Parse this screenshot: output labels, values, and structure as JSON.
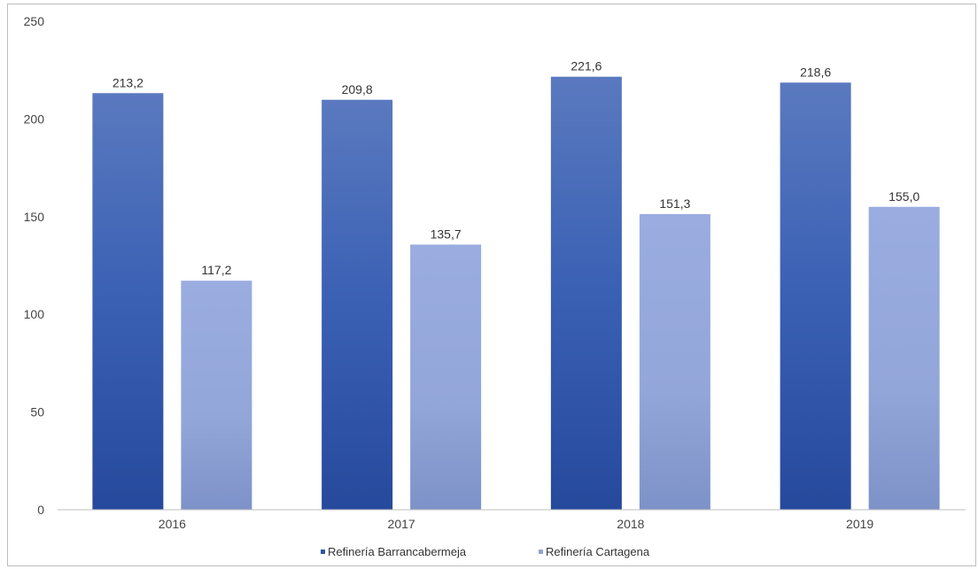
{
  "chart_data": {
    "type": "bar",
    "categories": [
      "2016",
      "2017",
      "2018",
      "2019"
    ],
    "series": [
      {
        "name": "Refinería Barrancabermeja",
        "values": [
          213.2,
          209.8,
          221.6,
          218.6
        ],
        "labels": [
          "213,2",
          "209,8",
          "221,6",
          "218,6"
        ],
        "color": "#2f55a6"
      },
      {
        "name": "Refinería Cartagena",
        "values": [
          117.2,
          135.7,
          151.3,
          155.0
        ],
        "labels": [
          "117,2",
          "135,7",
          "151,3",
          "155,0"
        ],
        "color": "#8fa3d6"
      }
    ],
    "yticks": [
      0,
      50,
      100,
      150,
      200,
      250
    ],
    "ylim": [
      0,
      250
    ],
    "grid": false,
    "legend_position": "bottom-center"
  }
}
